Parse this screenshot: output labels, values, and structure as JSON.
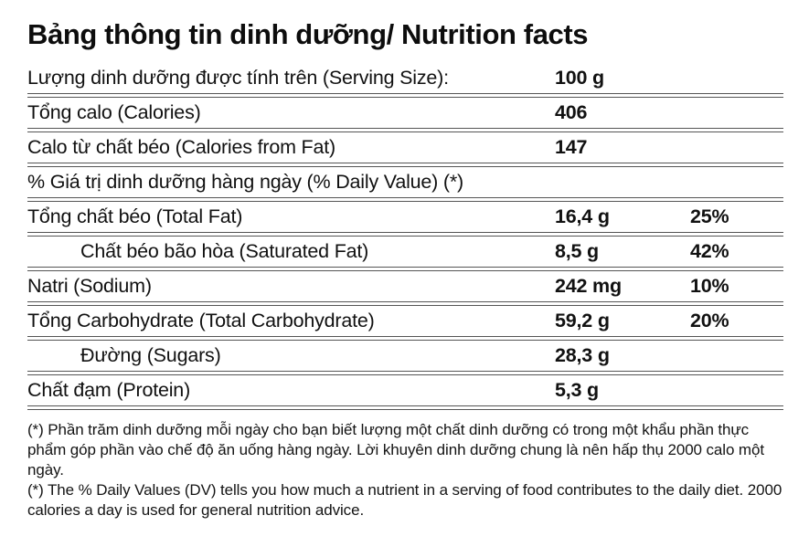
{
  "title": "Bảng thông tin dinh dưỡng/ Nutrition facts",
  "rows": [
    {
      "label": "Lượng dinh dưỡng được tính trên (Serving Size):",
      "value": "100 g",
      "pct": ""
    },
    {
      "label": "Tổng calo (Calories)",
      "value": "406",
      "pct": ""
    },
    {
      "label": "Calo từ chất béo (Calories from Fat)",
      "value": "147",
      "pct": ""
    },
    {
      "label": "% Giá trị dinh dưỡng hàng ngày (% Daily Value) (*)",
      "value": "",
      "pct": ""
    },
    {
      "label": "Tổng chất béo (Total Fat)",
      "value": "16,4 g",
      "pct": "25%"
    },
    {
      "label": "Chất béo bão hòa (Saturated Fat)",
      "value": "8,5 g",
      "pct": "42%"
    },
    {
      "label": "Natri (Sodium)",
      "value": "242 mg",
      "pct": "10%"
    },
    {
      "label": "Tổng Carbohydrate (Total Carbohydrate)",
      "value": "59,2 g",
      "pct": "20%"
    },
    {
      "label": "Đường (Sugars)",
      "value": "28,3 g",
      "pct": ""
    },
    {
      "label": "Chất đạm (Protein)",
      "value": "5,3 g",
      "pct": ""
    }
  ],
  "footnotes": {
    "vi": "(*) Phần trăm dinh dưỡng mỗi ngày cho bạn biết lượng một chất dinh dưỡng có trong một khẩu phần thực phẩm góp phần vào chế độ ăn uống hàng ngày. Lời khuyên dinh dưỡng chung là nên hấp thụ 2000 calo một ngày.",
    "en": "(*) The % Daily Values (DV) tells you how much a nutrient in a serving of food contributes to the daily diet. 2000 calories a day is used for general nutrition advice."
  },
  "colors": {
    "text": "#111111",
    "rule": "#555555",
    "background": "#ffffff"
  }
}
